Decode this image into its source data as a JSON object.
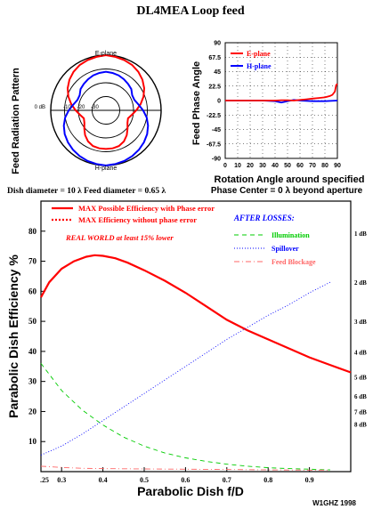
{
  "page_title": "DL4MEA Loop feed",
  "footer_credit": "W1GHZ 1998",
  "chart_data": [
    {
      "id": "polar",
      "type": "polar",
      "ylabel": "Feed Radiation Pattern",
      "top_label": "E-plane",
      "bottom_label": "H-plane",
      "ring_labels": [
        "0 dB",
        "-10",
        "-20",
        "-30"
      ],
      "ring_db": [
        0,
        -10,
        -20,
        -30
      ],
      "caption": "Dish diameter = 10 λ     Feed diameter = 0.65 λ",
      "series": [
        {
          "name": "E-plane",
          "color": "#ff0000",
          "points": [
            [
              0,
              0
            ],
            [
              10,
              -0.6
            ],
            [
              20,
              -1.2
            ],
            [
              30,
              -2.0
            ],
            [
              40,
              -3.5
            ],
            [
              50,
              -5.5
            ],
            [
              60,
              -8.0
            ],
            [
              70,
              -11.0
            ],
            [
              80,
              -14.5
            ],
            [
              90,
              -18
            ],
            [
              100,
              -21
            ],
            [
              110,
              -23
            ],
            [
              120,
              -22
            ],
            [
              130,
              -19.5
            ],
            [
              140,
              -16.5
            ],
            [
              150,
              -14
            ],
            [
              160,
              -12.5
            ],
            [
              170,
              -12
            ],
            [
              180,
              -12
            ]
          ]
        },
        {
          "name": "H-plane",
          "color": "#0000ff",
          "points": [
            [
              0,
              0
            ],
            [
              10,
              -0.5
            ],
            [
              20,
              -1.0
            ],
            [
              30,
              -1.8
            ],
            [
              40,
              -2.8
            ],
            [
              50,
              -4.0
            ],
            [
              60,
              -5.5
            ],
            [
              70,
              -7.5
            ],
            [
              80,
              -10.0
            ],
            [
              90,
              -13
            ],
            [
              100,
              -16
            ],
            [
              110,
              -18
            ],
            [
              120,
              -18
            ],
            [
              130,
              -16
            ],
            [
              140,
              -15
            ],
            [
              150,
              -14
            ],
            [
              160,
              -13
            ],
            [
              170,
              -12.5
            ],
            [
              180,
              -12
            ]
          ]
        }
      ]
    },
    {
      "id": "phase",
      "type": "line",
      "xlabel": "Rotation Angle around specified",
      "ylabel": "Feed Phase Angle",
      "subcaption": "Phase Center = 0 λ beyond aperture",
      "xlim": [
        0,
        90
      ],
      "ylim": [
        -90,
        90
      ],
      "x_ticks": [
        0,
        10,
        20,
        30,
        40,
        50,
        60,
        70,
        80,
        90
      ],
      "y_ticks": [
        "90",
        "67.5",
        "45",
        "22.5",
        "0",
        "-22.5",
        "-45",
        "-67.5",
        "-90"
      ],
      "y_tick_values": [
        90,
        67.5,
        45,
        22.5,
        0,
        -22.5,
        -45,
        -67.5,
        -90
      ],
      "series": [
        {
          "name": "E-plane",
          "color": "#ff0000",
          "x": [
            0,
            10,
            20,
            30,
            40,
            45,
            50,
            55,
            60,
            65,
            70,
            75,
            80,
            84,
            86,
            88,
            89,
            90
          ],
          "y": [
            0,
            0,
            0,
            0,
            0,
            0.5,
            0.5,
            0,
            1,
            2,
            3,
            4,
            5,
            7,
            9,
            14,
            24,
            26
          ]
        },
        {
          "name": "H-plane",
          "color": "#0000ff",
          "x": [
            0,
            10,
            20,
            30,
            40,
            45,
            50,
            55,
            60,
            70,
            80,
            90
          ],
          "y": [
            0,
            0,
            0,
            0,
            -1,
            -3,
            -1,
            1,
            0,
            -1,
            -1,
            0
          ]
        }
      ]
    },
    {
      "id": "efficiency",
      "type": "line",
      "xlabel": "Parabolic Dish f/D",
      "ylabel": "Parabolic Dish Efficiency %",
      "xlim": [
        0.25,
        1.0
      ],
      "ylim": [
        0,
        90
      ],
      "x_ticks": [
        0.25,
        0.3,
        0.4,
        0.5,
        0.6,
        0.7,
        0.8,
        0.9
      ],
      "x_tick_labels": [
        ".25",
        "0.3",
        "0.4",
        "0.5",
        "0.6",
        "0.7",
        "0.8",
        "0.9"
      ],
      "y_ticks": [
        10,
        20,
        30,
        40,
        50,
        60,
        70,
        80
      ],
      "right_axis_labels": [
        {
          "label": "1 dB",
          "value": 79.4
        },
        {
          "label": "2 dB",
          "value": 63.1
        },
        {
          "label": "3 dB",
          "value": 50.1
        },
        {
          "label": "4 dB",
          "value": 39.8
        },
        {
          "label": "5 dB",
          "value": 31.6
        },
        {
          "label": "6 dB",
          "value": 25.1
        },
        {
          "label": "7 dB",
          "value": 20.0
        },
        {
          "label": "8 dB",
          "value": 15.8
        }
      ],
      "legend": [
        {
          "label": "MAX Possible Efficiency with Phase error",
          "color": "#ff0000",
          "style": "solid"
        },
        {
          "label": "MAX Efficiency without phase error",
          "color": "#ff0000",
          "style": "dotted"
        }
      ],
      "annotation": "REAL WORLD at least 15% lower",
      "losses_title": "AFTER LOSSES:",
      "losses_legend": [
        {
          "label": "Illumination",
          "color": "#00cc00",
          "style": "dashed"
        },
        {
          "label": "Spillover",
          "color": "#0000ff",
          "style": "dotted"
        },
        {
          "label": "Feed Blockage",
          "color": "#ff6666",
          "style": "dashdot"
        }
      ],
      "series": [
        {
          "name": "MAX Possible Efficiency with Phase error",
          "color": "#ff0000",
          "x": [
            0.25,
            0.27,
            0.3,
            0.33,
            0.36,
            0.38,
            0.4,
            0.43,
            0.46,
            0.5,
            0.55,
            0.6,
            0.65,
            0.7,
            0.75,
            0.8,
            0.85,
            0.9,
            0.95,
            1.0
          ],
          "y": [
            58,
            63,
            67.5,
            70,
            71.5,
            72,
            71.8,
            71,
            69.5,
            67,
            63.5,
            59.5,
            55,
            50.5,
            47,
            44,
            41,
            38,
            35.5,
            33
          ]
        },
        {
          "name": "Illumination",
          "color": "#00cc00",
          "x": [
            0.25,
            0.3,
            0.35,
            0.4,
            0.45,
            0.5,
            0.55,
            0.6,
            0.65,
            0.7,
            0.75,
            0.8,
            0.85,
            0.9,
            0.95
          ],
          "y": [
            36,
            27,
            20.5,
            15.5,
            11.5,
            8.5,
            6.2,
            4.6,
            3.4,
            2.5,
            1.8,
            1.3,
            1.0,
            0.8,
            0.6
          ]
        },
        {
          "name": "Spillover",
          "color": "#0000ff",
          "x": [
            0.25,
            0.3,
            0.35,
            0.4,
            0.45,
            0.5,
            0.55,
            0.6,
            0.65,
            0.7,
            0.75,
            0.8,
            0.85,
            0.9,
            0.95
          ],
          "y": [
            5.5,
            8.5,
            12.5,
            17,
            21.5,
            26,
            30.5,
            35,
            39.5,
            44,
            48,
            52,
            55.5,
            59.5,
            63
          ]
        },
        {
          "name": "Feed Blockage",
          "color": "#ff6666",
          "x": [
            0.25,
            0.3,
            0.35,
            0.4,
            0.5,
            0.6,
            0.7,
            0.8,
            0.9,
            0.95
          ],
          "y": [
            1.8,
            1.4,
            1.1,
            1.0,
            0.9,
            0.8,
            0.7,
            0.6,
            0.5,
            0.5
          ]
        }
      ]
    }
  ]
}
